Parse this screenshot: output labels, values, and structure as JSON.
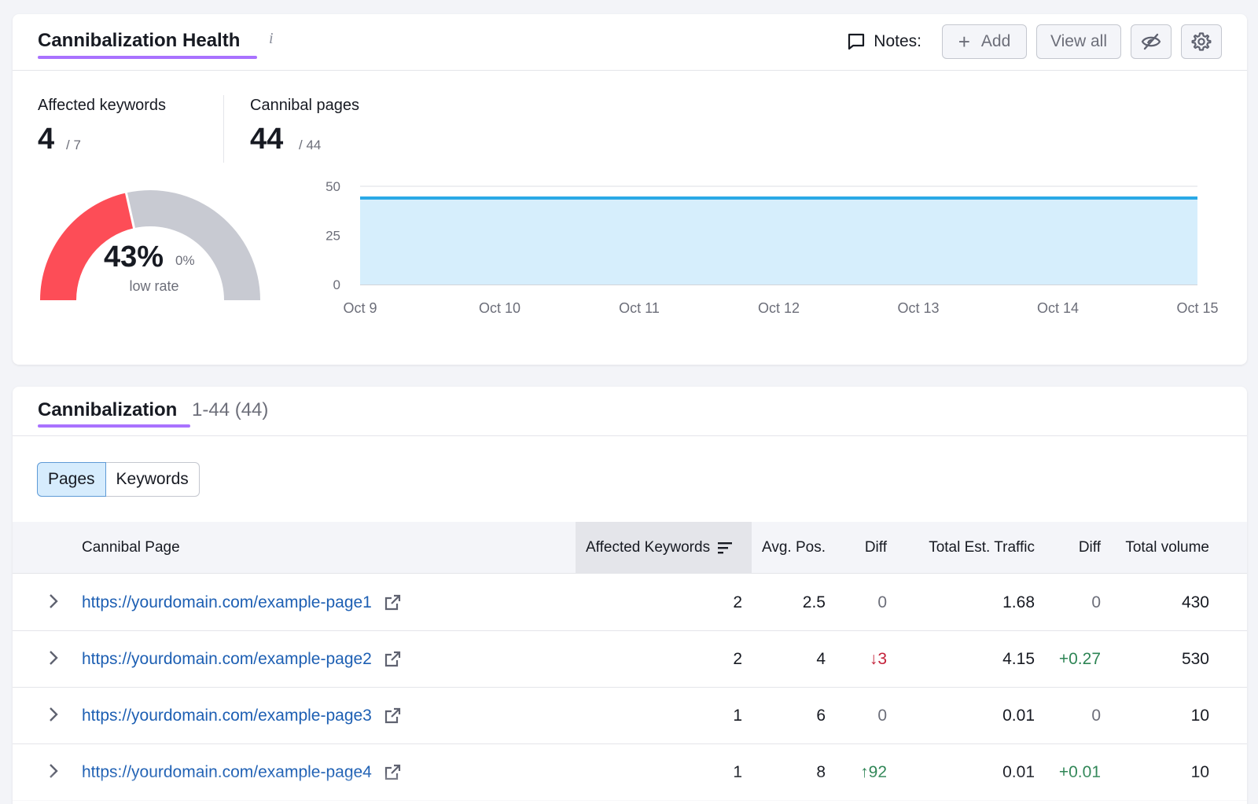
{
  "health": {
    "title": "Cannibalization Health",
    "info_icon": "i",
    "notes_label": "Notes:",
    "add_label": "Add",
    "view_all_label": "View all",
    "affected_keywords": {
      "label": "Affected keywords",
      "value": "4",
      "total": "/ 7"
    },
    "cannibal_pages": {
      "label": "Cannibal pages",
      "value": "44",
      "total": "/ 44"
    },
    "gauge": {
      "percent_text": "43%",
      "percent": 0.43,
      "diff": "0%",
      "caption": "low rate",
      "color_active": "#fd4d57",
      "color_rest": "#c8cad2"
    }
  },
  "chart_data": {
    "type": "area",
    "x": [
      "Oct 9",
      "Oct 10",
      "Oct 11",
      "Oct 12",
      "Oct 13",
      "Oct 14",
      "Oct 15"
    ],
    "series": [
      {
        "values": [
          44,
          44,
          44,
          44,
          44,
          44,
          44
        ],
        "color": "#2aa9e6",
        "fill": "#d6eefc"
      }
    ],
    "ylim": [
      0,
      50
    ],
    "yticks": [
      0,
      25,
      50
    ],
    "grid": true
  },
  "cannibalization": {
    "title": "Cannibalization",
    "range": "1-44 (44)",
    "tabs": [
      "Pages",
      "Keywords"
    ],
    "columns": {
      "page": "Cannibal Page",
      "affected": "Affected Keywords",
      "avg_pos": "Avg. Pos.",
      "diff": "Diff",
      "traffic": "Total Est. Traffic",
      "traffic_diff": "Diff",
      "volume": "Total volume"
    },
    "rows": [
      {
        "url": "https://yourdomain.com/example-page1",
        "affected": "2",
        "avg_pos": "2.5",
        "diff": "0",
        "traffic": "1.68",
        "traffic_diff": "0",
        "volume": "430"
      },
      {
        "url": "https://yourdomain.com/example-page2",
        "affected": "2",
        "avg_pos": "4",
        "diff": "↓3",
        "traffic": "4.15",
        "traffic_diff": "+0.27",
        "volume": "530"
      },
      {
        "url": "https://yourdomain.com/example-page3",
        "affected": "1",
        "avg_pos": "6",
        "diff": "0",
        "traffic": "0.01",
        "traffic_diff": "0",
        "volume": "10"
      },
      {
        "url": "https://yourdomain.com/example-page4",
        "affected": "1",
        "avg_pos": "8",
        "diff": "↑92",
        "traffic": "0.01",
        "traffic_diff": "+0.01",
        "volume": "10"
      }
    ]
  },
  "colors": {
    "accent": "#a972ff",
    "link": "#1d5fb3",
    "negative": "#c4223a",
    "positive": "#2e8555"
  }
}
